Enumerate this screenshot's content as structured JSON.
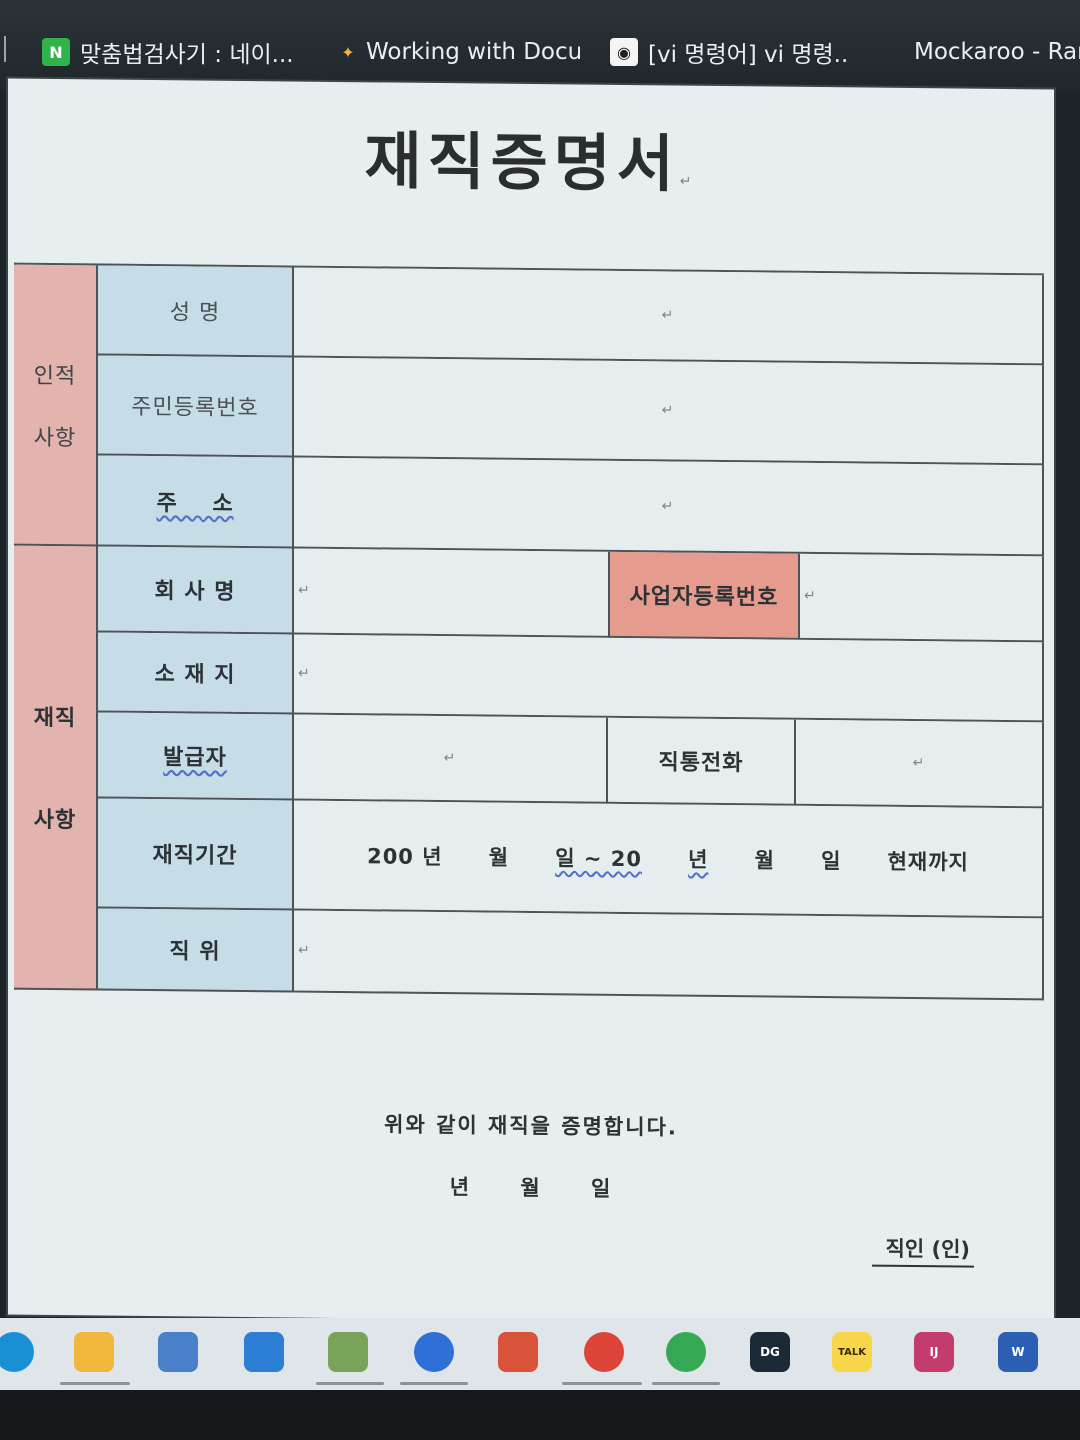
{
  "browser": {
    "tabs": [
      {
        "label": "맞춤법검사기 : 네이...",
        "icon": "N"
      },
      {
        "label": "Working with Docu...",
        "icon": ""
      },
      {
        "label": "[vi 명령어] vi 명령...",
        "icon": ""
      },
      {
        "label": "Mockaroo - Rand",
        "icon": ""
      }
    ]
  },
  "document": {
    "title": "재직증명서",
    "personal_group": {
      "line1": "인적",
      "line2": "사항"
    },
    "employment_group": {
      "line1": "재직",
      "line2": "사항"
    },
    "fields": {
      "name": "성 명",
      "resident_no": "주민등록번호",
      "address": "주    소",
      "company": "회 사 명",
      "business_no": "사업자등록번호",
      "location": "소 재 지",
      "issuer": "발급자",
      "direct_phone": "직통전화",
      "period": "재직기간",
      "position": "직 위"
    },
    "period_value": [
      "200 년",
      "월",
      "일 ~ 20",
      "년",
      "월",
      "일",
      "현재까지"
    ],
    "certify_text": "위와 같이 재직을 증명합니다.",
    "date_line": [
      "년",
      "월",
      "일"
    ],
    "seal": "직인 (인)",
    "return_mark": "↵"
  },
  "taskbar": {
    "apps": [
      "edge-icon",
      "explorer-icon",
      "store-icon",
      "mail-icon",
      "notepad-icon",
      "messenger-icon",
      "office-icon",
      "chrome-icon",
      "chrome-profile-icon",
      "datagrip-icon",
      "kakaotalk-icon",
      "intellij-icon",
      "word-icon"
    ],
    "labels": {
      "datagrip": "DG",
      "kakaotalk": "TALK",
      "intellij": "IJ",
      "word": "W"
    }
  }
}
